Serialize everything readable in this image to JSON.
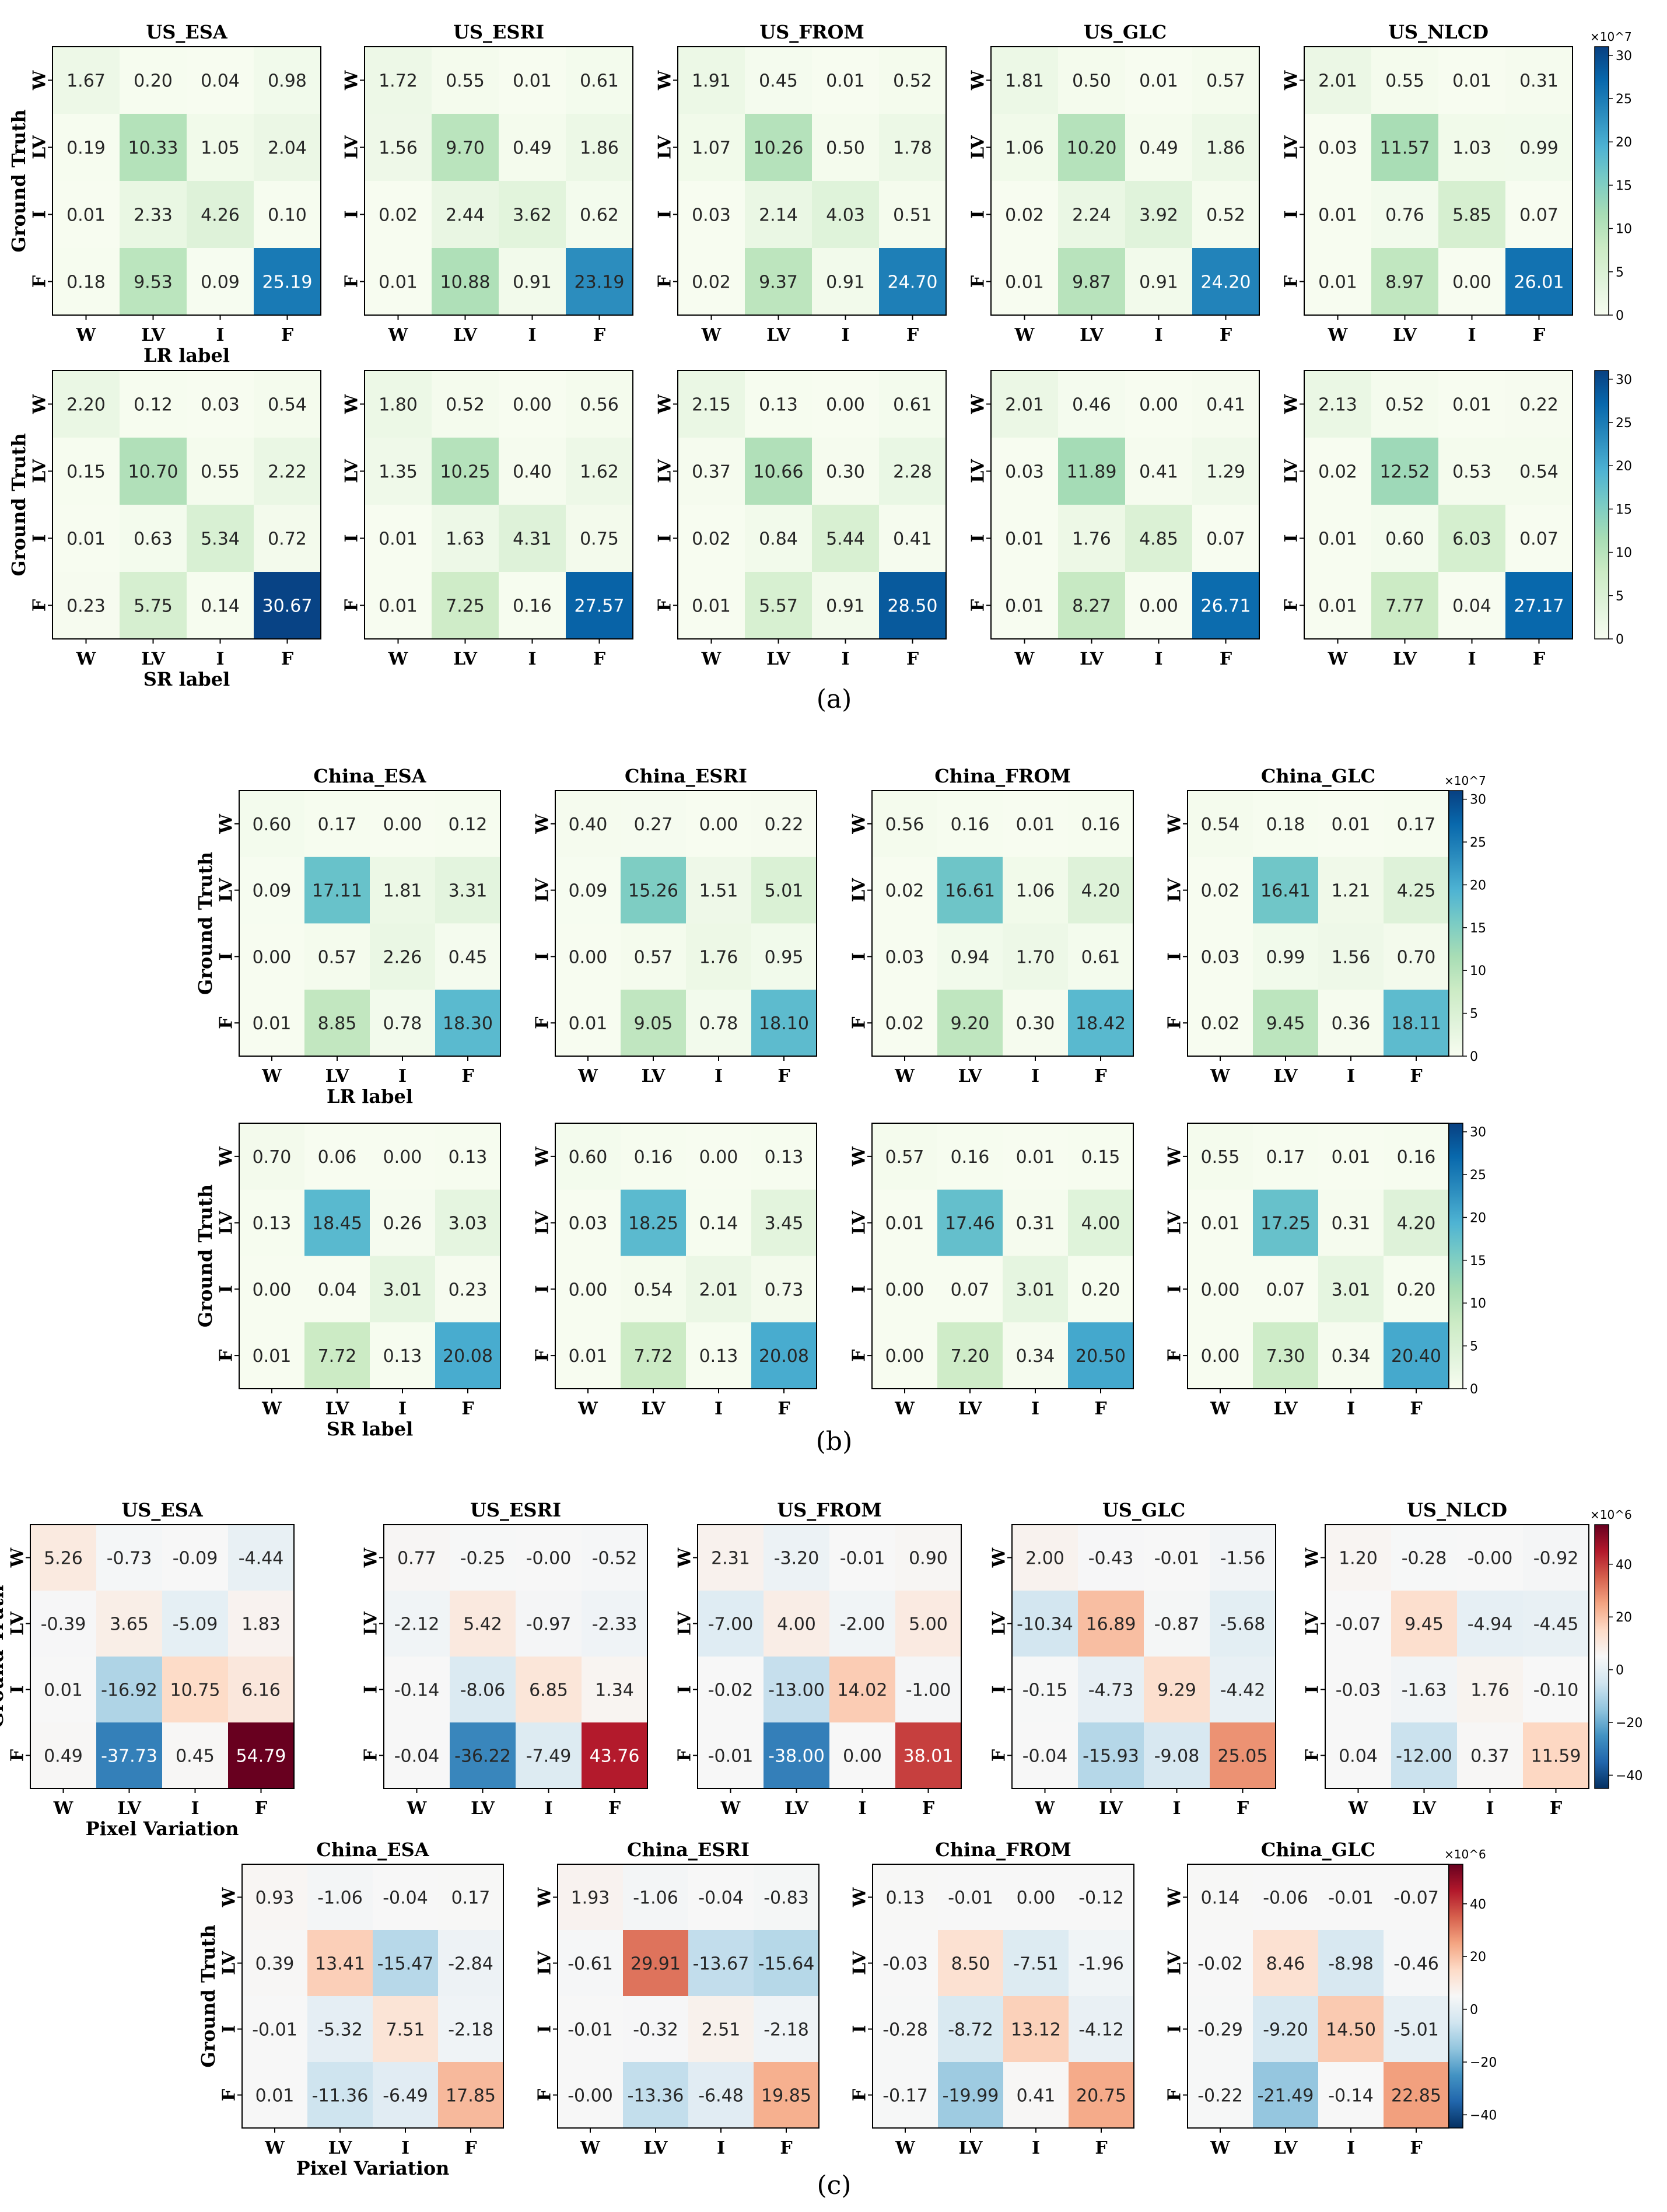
{
  "figure": {
    "panel_labels": [
      "(a)",
      "(b)",
      "(c)"
    ],
    "class_labels": [
      "W",
      "LV",
      "I",
      "F"
    ],
    "y_axis_label": "Ground Truth",
    "colorbar_multipliers": {
      "a": "×10^7",
      "b": "×10^7",
      "c": "×10^6"
    },
    "colorbar_ticks": {
      "green": [
        "0",
        "5",
        "10",
        "15",
        "20",
        "25",
        "30"
      ],
      "diverging": [
        "−40",
        "−20",
        "0",
        "20",
        "40"
      ]
    },
    "colormaps": {
      "green": [
        "#f7fcf0",
        "#e0f3db",
        "#ccebc5",
        "#a8ddb5",
        "#7bccc4",
        "#4eb3d3",
        "#2b8cbe",
        "#0868ac",
        "#084081"
      ],
      "diverging": [
        "#053061",
        "#2166ac",
        "#4393c3",
        "#92c5de",
        "#d1e5f0",
        "#f7f7f7",
        "#fddbc7",
        "#f4a582",
        "#d6604d",
        "#b2182b",
        "#67001f"
      ]
    }
  },
  "chart_data": [
    {
      "id": "a_lr_us_esa",
      "group": "a",
      "type": "heatmap",
      "title": "US_ESA",
      "xlabel": "LR label",
      "ylabel": "Ground Truth",
      "values": [
        [
          1.67,
          0.2,
          0.04,
          0.98
        ],
        [
          0.19,
          10.33,
          1.05,
          2.04
        ],
        [
          0.01,
          2.33,
          4.26,
          0.1
        ],
        [
          0.18,
          9.53,
          0.09,
          25.19
        ]
      ]
    },
    {
      "id": "a_lr_us_esri",
      "group": "a",
      "type": "heatmap",
      "title": "US_ESRI",
      "xlabel": "",
      "ylabel": "",
      "values": [
        [
          1.72,
          0.55,
          0.01,
          0.61
        ],
        [
          1.56,
          9.7,
          0.49,
          1.86
        ],
        [
          0.02,
          2.44,
          3.62,
          0.62
        ],
        [
          0.01,
          10.88,
          0.91,
          23.19
        ]
      ]
    },
    {
      "id": "a_lr_us_from",
      "group": "a",
      "type": "heatmap",
      "title": "US_FROM",
      "xlabel": "",
      "ylabel": "",
      "values": [
        [
          1.91,
          0.45,
          0.01,
          0.52
        ],
        [
          1.07,
          10.26,
          0.5,
          1.78
        ],
        [
          0.03,
          2.14,
          4.03,
          0.51
        ],
        [
          0.02,
          9.37,
          0.91,
          24.7
        ]
      ]
    },
    {
      "id": "a_lr_us_glc",
      "group": "a",
      "type": "heatmap",
      "title": "US_GLC",
      "xlabel": "",
      "ylabel": "",
      "values": [
        [
          1.81,
          0.5,
          0.01,
          0.57
        ],
        [
          1.06,
          10.2,
          0.49,
          1.86
        ],
        [
          0.02,
          2.24,
          3.92,
          0.52
        ],
        [
          0.01,
          9.87,
          0.91,
          24.2
        ]
      ]
    },
    {
      "id": "a_lr_us_nlcd",
      "group": "a",
      "type": "heatmap",
      "title": "US_NLCD",
      "xlabel": "",
      "ylabel": "",
      "values": [
        [
          2.01,
          0.55,
          0.01,
          0.31
        ],
        [
          0.03,
          11.57,
          1.03,
          0.99
        ],
        [
          0.01,
          0.76,
          5.85,
          0.07
        ],
        [
          0.01,
          8.97,
          0.0,
          26.01
        ]
      ]
    },
    {
      "id": "a_sr_1",
      "group": "a",
      "type": "heatmap",
      "title": "",
      "xlabel": "SR label",
      "ylabel": "Ground Truth",
      "values": [
        [
          2.2,
          0.12,
          0.03,
          0.54
        ],
        [
          0.15,
          10.7,
          0.55,
          2.22
        ],
        [
          0.01,
          0.63,
          5.34,
          0.72
        ],
        [
          0.23,
          5.75,
          0.14,
          30.67
        ]
      ]
    },
    {
      "id": "a_sr_2",
      "group": "a",
      "type": "heatmap",
      "title": "",
      "xlabel": "",
      "ylabel": "",
      "values": [
        [
          1.8,
          0.52,
          0.0,
          0.56
        ],
        [
          1.35,
          10.25,
          0.4,
          1.62
        ],
        [
          0.01,
          1.63,
          4.31,
          0.75
        ],
        [
          0.01,
          7.25,
          0.16,
          27.57
        ]
      ]
    },
    {
      "id": "a_sr_3",
      "group": "a",
      "type": "heatmap",
      "title": "",
      "xlabel": "",
      "ylabel": "",
      "values": [
        [
          2.15,
          0.13,
          0.0,
          0.61
        ],
        [
          0.37,
          10.66,
          0.3,
          2.28
        ],
        [
          0.02,
          0.84,
          5.44,
          0.41
        ],
        [
          0.01,
          5.57,
          0.91,
          28.5
        ]
      ]
    },
    {
      "id": "a_sr_4",
      "group": "a",
      "type": "heatmap",
      "title": "",
      "xlabel": "",
      "ylabel": "",
      "values": [
        [
          2.01,
          0.46,
          0.0,
          0.41
        ],
        [
          0.03,
          11.89,
          0.41,
          1.29
        ],
        [
          0.01,
          1.76,
          4.85,
          0.07
        ],
        [
          0.01,
          8.27,
          0.0,
          26.71
        ]
      ]
    },
    {
      "id": "a_sr_5",
      "group": "a",
      "type": "heatmap",
      "title": "",
      "xlabel": "",
      "ylabel": "",
      "values": [
        [
          2.13,
          0.52,
          0.01,
          0.22
        ],
        [
          0.02,
          12.52,
          0.53,
          0.54
        ],
        [
          0.01,
          0.6,
          6.03,
          0.07
        ],
        [
          0.01,
          7.77,
          0.04,
          27.17
        ]
      ]
    },
    {
      "id": "b_lr_china_esa",
      "group": "b",
      "type": "heatmap",
      "title": "China_ESA",
      "xlabel": "LR label",
      "ylabel": "Ground Truth",
      "values": [
        [
          0.6,
          0.17,
          0.0,
          0.12
        ],
        [
          0.09,
          17.11,
          1.81,
          3.31
        ],
        [
          0.0,
          0.57,
          2.26,
          0.45
        ],
        [
          0.01,
          8.85,
          0.78,
          18.3
        ]
      ]
    },
    {
      "id": "b_lr_china_esri",
      "group": "b",
      "type": "heatmap",
      "title": "China_ESRI",
      "xlabel": "",
      "ylabel": "",
      "values": [
        [
          0.4,
          0.27,
          0.0,
          0.22
        ],
        [
          0.09,
          15.26,
          1.51,
          5.01
        ],
        [
          0.0,
          0.57,
          1.76,
          0.95
        ],
        [
          0.01,
          9.05,
          0.78,
          18.1
        ]
      ]
    },
    {
      "id": "b_lr_china_from",
      "group": "b",
      "type": "heatmap",
      "title": "China_FROM",
      "xlabel": "",
      "ylabel": "",
      "values": [
        [
          0.56,
          0.16,
          0.01,
          0.16
        ],
        [
          0.02,
          16.61,
          1.06,
          4.2
        ],
        [
          0.03,
          0.94,
          1.7,
          0.61
        ],
        [
          0.02,
          9.2,
          0.3,
          18.42
        ]
      ]
    },
    {
      "id": "b_lr_china_glc",
      "group": "b",
      "type": "heatmap",
      "title": "China_GLC",
      "xlabel": "",
      "ylabel": "",
      "values": [
        [
          0.54,
          0.18,
          0.01,
          0.17
        ],
        [
          0.02,
          16.41,
          1.21,
          4.25
        ],
        [
          0.03,
          0.99,
          1.56,
          0.7
        ],
        [
          0.02,
          9.45,
          0.36,
          18.11
        ]
      ]
    },
    {
      "id": "b_sr_1",
      "group": "b",
      "type": "heatmap",
      "title": "",
      "xlabel": "SR label",
      "ylabel": "Ground Truth",
      "values": [
        [
          0.7,
          0.06,
          0.0,
          0.13
        ],
        [
          0.13,
          18.45,
          0.26,
          3.03
        ],
        [
          0.0,
          0.04,
          3.01,
          0.23
        ],
        [
          0.01,
          7.72,
          0.13,
          20.08
        ]
      ]
    },
    {
      "id": "b_sr_2",
      "group": "b",
      "type": "heatmap",
      "title": "",
      "xlabel": "",
      "ylabel": "",
      "values": [
        [
          0.6,
          0.16,
          0.0,
          0.13
        ],
        [
          0.03,
          18.25,
          0.14,
          3.45
        ],
        [
          0.0,
          0.54,
          2.01,
          0.73
        ],
        [
          0.01,
          7.72,
          0.13,
          20.08
        ]
      ]
    },
    {
      "id": "b_sr_3",
      "group": "b",
      "type": "heatmap",
      "title": "",
      "xlabel": "",
      "ylabel": "",
      "values": [
        [
          0.57,
          0.16,
          0.01,
          0.15
        ],
        [
          0.01,
          17.46,
          0.31,
          4.0
        ],
        [
          0.0,
          0.07,
          3.01,
          0.2
        ],
        [
          0.0,
          7.2,
          0.34,
          20.5
        ]
      ]
    },
    {
      "id": "b_sr_4",
      "group": "b",
      "type": "heatmap",
      "title": "",
      "xlabel": "",
      "ylabel": "",
      "values": [
        [
          0.55,
          0.17,
          0.01,
          0.16
        ],
        [
          0.01,
          17.25,
          0.31,
          4.2
        ],
        [
          0.0,
          0.07,
          3.01,
          0.2
        ],
        [
          0.0,
          7.3,
          0.34,
          20.4
        ]
      ]
    },
    {
      "id": "c_us_esa",
      "group": "c",
      "type": "heatmap",
      "title": "US_ESA",
      "xlabel": "Pixel Variation",
      "ylabel": "Ground Truth",
      "values": [
        [
          5.26,
          -0.73,
          -0.09,
          -4.44
        ],
        [
          -0.39,
          3.65,
          -5.09,
          1.83
        ],
        [
          0.01,
          -16.92,
          10.75,
          6.16
        ],
        [
          0.49,
          -37.73,
          0.45,
          54.79
        ]
      ]
    },
    {
      "id": "c_us_esri",
      "group": "c",
      "type": "heatmap",
      "title": "US_ESRI",
      "xlabel": "",
      "ylabel": "",
      "values": [
        [
          0.77,
          -0.25,
          -0.0,
          -0.52
        ],
        [
          -2.12,
          5.42,
          -0.97,
          -2.33
        ],
        [
          -0.14,
          -8.06,
          6.85,
          1.34
        ],
        [
          -0.04,
          -36.22,
          -7.49,
          43.76
        ]
      ]
    },
    {
      "id": "c_us_from",
      "group": "c",
      "type": "heatmap",
      "title": "US_FROM",
      "xlabel": "",
      "ylabel": "",
      "values": [
        [
          2.31,
          -3.2,
          -0.01,
          0.9
        ],
        [
          -7.0,
          4.0,
          -2.0,
          5.0
        ],
        [
          -0.02,
          -13.0,
          14.02,
          -1.0
        ],
        [
          -0.01,
          -38.0,
          0.0,
          38.01
        ]
      ]
    },
    {
      "id": "c_us_glc",
      "group": "c",
      "type": "heatmap",
      "title": "US_GLC",
      "xlabel": "",
      "ylabel": "",
      "values": [
        [
          2.0,
          -0.43,
          -0.01,
          -1.56
        ],
        [
          -10.34,
          16.89,
          -0.87,
          -5.68
        ],
        [
          -0.15,
          -4.73,
          9.29,
          -4.42
        ],
        [
          -0.04,
          -15.93,
          -9.08,
          25.05
        ]
      ]
    },
    {
      "id": "c_us_nlcd",
      "group": "c",
      "type": "heatmap",
      "title": "US_NLCD",
      "xlabel": "",
      "ylabel": "",
      "values": [
        [
          1.2,
          -0.28,
          -0.0,
          -0.92
        ],
        [
          -0.07,
          9.45,
          -4.94,
          -4.45
        ],
        [
          -0.03,
          -1.63,
          1.76,
          -0.1
        ],
        [
          0.04,
          -12.0,
          0.37,
          11.59
        ]
      ]
    },
    {
      "id": "c_china_esa",
      "group": "c",
      "type": "heatmap",
      "title": "China_ESA",
      "xlabel": "Pixel Variation",
      "ylabel": "Ground Truth",
      "values": [
        [
          0.93,
          -1.06,
          -0.04,
          0.17
        ],
        [
          0.39,
          13.41,
          -15.47,
          -2.84
        ],
        [
          -0.01,
          -5.32,
          7.51,
          -2.18
        ],
        [
          0.01,
          -11.36,
          -6.49,
          17.85
        ]
      ]
    },
    {
      "id": "c_china_esri",
      "group": "c",
      "type": "heatmap",
      "title": "China_ESRI",
      "xlabel": "",
      "ylabel": "",
      "values": [
        [
          1.93,
          -1.06,
          -0.04,
          -0.83
        ],
        [
          -0.61,
          29.91,
          -13.67,
          -15.64
        ],
        [
          -0.01,
          -0.32,
          2.51,
          -2.18
        ],
        [
          -0.0,
          -13.36,
          -6.48,
          19.85
        ]
      ]
    },
    {
      "id": "c_china_from",
      "group": "c",
      "type": "heatmap",
      "title": "China_FROM",
      "xlabel": "",
      "ylabel": "",
      "values": [
        [
          0.13,
          -0.01,
          0.0,
          -0.12
        ],
        [
          -0.03,
          8.5,
          -7.51,
          -1.96
        ],
        [
          -0.28,
          -8.72,
          13.12,
          -4.12
        ],
        [
          -0.17,
          -19.99,
          0.41,
          20.75
        ]
      ]
    },
    {
      "id": "c_china_glc",
      "group": "c",
      "type": "heatmap",
      "title": "China_GLC",
      "xlabel": "",
      "ylabel": "",
      "values": [
        [
          0.14,
          -0.06,
          -0.01,
          -0.07
        ],
        [
          -0.02,
          8.46,
          -8.98,
          -0.46
        ],
        [
          -0.29,
          -9.2,
          14.5,
          -5.01
        ],
        [
          -0.22,
          -21.49,
          -0.14,
          22.85
        ]
      ]
    }
  ]
}
